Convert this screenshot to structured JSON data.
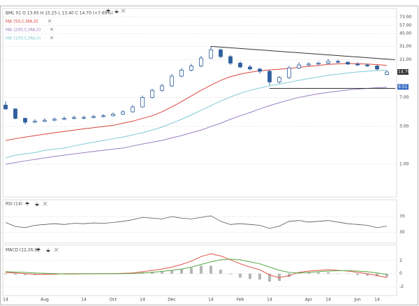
{
  "chart_data": [
    {
      "type": "candlestick",
      "title": "BML 01 O 13.65 H 15.25 L 13.40 C 14.70 (+7.69%)",
      "categories": [
        "14",
        null,
        null,
        null,
        "Aug",
        null,
        null,
        null,
        "14",
        null,
        null,
        "Oct",
        null,
        null,
        "14",
        null,
        null,
        "Dec",
        null,
        null,
        null,
        "14",
        null,
        null,
        "Feb",
        null,
        null,
        "14",
        null,
        null,
        null,
        "Apr",
        null,
        "14",
        null,
        null,
        "Jun",
        null,
        "14",
        null
      ],
      "candle_color": "#2f5f9e",
      "candles": [
        [
          5.6,
          6.2,
          4.9,
          5.0
        ],
        [
          5.0,
          5.1,
          3.7,
          3.8
        ],
        [
          3.8,
          3.9,
          3.2,
          3.4
        ],
        [
          3.4,
          3.7,
          3.3,
          3.5
        ],
        [
          3.5,
          3.8,
          3.4,
          3.6
        ],
        [
          3.6,
          3.9,
          3.5,
          3.7
        ],
        [
          3.7,
          4.0,
          3.6,
          3.8
        ],
        [
          3.8,
          4.1,
          3.7,
          3.9
        ],
        [
          3.9,
          4.1,
          3.7,
          3.9
        ],
        [
          3.9,
          4.2,
          3.8,
          4.0
        ],
        [
          4.0,
          4.3,
          3.9,
          4.1
        ],
        [
          4.1,
          4.5,
          4.0,
          4.3
        ],
        [
          4.3,
          4.8,
          4.2,
          4.6
        ],
        [
          4.6,
          5.6,
          4.5,
          5.3
        ],
        [
          5.3,
          7.4,
          5.2,
          7.0
        ],
        [
          7.0,
          9.0,
          6.8,
          8.6
        ],
        [
          8.6,
          10.4,
          8.3,
          9.8
        ],
        [
          9.8,
          13.8,
          9.5,
          13.0
        ],
        [
          13.0,
          16.5,
          12.6,
          15.5
        ],
        [
          15.5,
          18.6,
          15.0,
          17.5
        ],
        [
          17.5,
          23.5,
          17.0,
          22.0
        ],
        [
          22.0,
          31.0,
          21.5,
          28.0
        ],
        [
          28.0,
          29.0,
          22.0,
          23.0
        ],
        [
          23.0,
          24.0,
          18.0,
          19.0
        ],
        [
          19.0,
          20.0,
          16.5,
          17.0
        ],
        [
          17.0,
          18.0,
          15.5,
          16.0
        ],
        [
          16.0,
          16.5,
          14.0,
          15.0
        ],
        [
          15.0,
          15.5,
          10.0,
          11.0
        ],
        [
          11.0,
          13.0,
          10.5,
          12.5
        ],
        [
          12.5,
          17.5,
          12.0,
          16.5
        ],
        [
          16.5,
          19.5,
          16.0,
          18.0
        ],
        [
          18.0,
          19.5,
          17.5,
          18.5
        ],
        [
          18.5,
          20.0,
          18.0,
          19.0
        ],
        [
          19.0,
          21.5,
          18.5,
          20.0
        ],
        [
          20.0,
          21.0,
          19.0,
          19.5
        ],
        [
          19.5,
          20.0,
          18.0,
          18.5
        ],
        [
          18.5,
          19.5,
          17.5,
          18.0
        ],
        [
          18.0,
          18.8,
          17.0,
          17.5
        ],
        [
          17.5,
          18.0,
          15.5,
          16.0
        ],
        [
          13.65,
          15.25,
          13.4,
          14.7
        ]
      ],
      "series": [
        {
          "name": "MA (50,C,MA,0)",
          "color": "#d9453d",
          "values": [
            2.0,
            2.1,
            2.2,
            2.3,
            2.4,
            2.5,
            2.6,
            2.7,
            2.8,
            2.9,
            3.0,
            3.1,
            3.3,
            3.5,
            3.8,
            4.1,
            4.6,
            5.3,
            6.2,
            7.3,
            8.6,
            10.0,
            11.5,
            12.8,
            13.8,
            14.6,
            15.2,
            15.6,
            15.9,
            16.3,
            16.8,
            17.3,
            17.8,
            18.3,
            18.6,
            18.8,
            18.7,
            18.5,
            18.2,
            17.8
          ]
        },
        {
          "name": "MA (200,C,MA,0)",
          "color": "#9a7fc0",
          "values": [
            1.0,
            1.05,
            1.1,
            1.15,
            1.2,
            1.25,
            1.3,
            1.35,
            1.4,
            1.45,
            1.5,
            1.55,
            1.6,
            1.7,
            1.8,
            1.9,
            2.0,
            2.15,
            2.3,
            2.5,
            2.7,
            3.0,
            3.3,
            3.7,
            4.1,
            4.5,
            5.0,
            5.5,
            6.0,
            6.5,
            7.0,
            7.4,
            7.8,
            8.1,
            8.4,
            8.7,
            8.9,
            9.1,
            9.3,
            9.4
          ]
        },
        {
          "name": "MA (100,C,MA,0)",
          "color": "#7fcad6",
          "values": [
            1.2,
            1.3,
            1.35,
            1.4,
            1.5,
            1.55,
            1.6,
            1.7,
            1.8,
            1.9,
            2.0,
            2.1,
            2.2,
            2.35,
            2.5,
            2.7,
            2.95,
            3.3,
            3.7,
            4.2,
            4.8,
            5.5,
            6.3,
            7.1,
            7.9,
            8.6,
            9.2,
            9.8,
            10.3,
            10.9,
            11.5,
            12.1,
            12.7,
            13.3,
            13.8,
            14.3,
            14.7,
            15.0,
            15.3,
            15.5
          ]
        }
      ],
      "trendlines": [
        {
          "x": [
            21,
            39
          ],
          "y": [
            31,
            21
          ]
        },
        {
          "x": [
            27,
            39
          ],
          "y": [
            9.1,
            9.1
          ]
        }
      ],
      "price_markers": [
        {
          "value": 14.7,
          "label": "14.70",
          "color": "#333333"
        },
        {
          "value": 9.51,
          "label": "9.51",
          "color": "#3b6fc4"
        }
      ],
      "log": true,
      "ylim": [
        0.4,
        90
      ],
      "yticks": [
        {
          "value": 73,
          "label": "73.00"
        },
        {
          "value": 57,
          "label": "57.00"
        },
        {
          "value": 45,
          "label": "45.00"
        },
        {
          "value": 31,
          "label": "31.00"
        },
        {
          "value": 21,
          "label": "21.00"
        },
        {
          "value": 7,
          "label": "7.00"
        },
        {
          "value": 3,
          "label": "3.00"
        },
        {
          "value": 1,
          "label": "1.00"
        }
      ]
    },
    {
      "type": "line",
      "title": "RSI (14)",
      "color": "#555555",
      "values": [
        55,
        45,
        42,
        48,
        50,
        52,
        50,
        53,
        52,
        54,
        53,
        55,
        58,
        62,
        68,
        66,
        64,
        70,
        66,
        64,
        68,
        72,
        58,
        50,
        52,
        50,
        48,
        40,
        46,
        58,
        60,
        56,
        58,
        60,
        56,
        52,
        50,
        48,
        42,
        46
      ],
      "ylim": [
        10,
        100
      ],
      "yticks": [
        70,
        30
      ]
    },
    {
      "type": "line",
      "title": "MACD (12,26,9)",
      "series": [
        {
          "color": "#e0544a",
          "values": [
            0.2,
            0.1,
            0,
            -0.1,
            -0.1,
            -0.1,
            0,
            0,
            0,
            0,
            0,
            0,
            0.05,
            0.1,
            0.3,
            0.5,
            0.7,
            1.0,
            1.4,
            1.9,
            2.6,
            3.0,
            2.7,
            2.1,
            1.5,
            1.0,
            0.6,
            -0.2,
            -0.6,
            -0.3,
            0.2,
            0.4,
            0.5,
            0.6,
            0.5,
            0.4,
            0.2,
            0,
            -0.3,
            -0.6
          ]
        },
        {
          "color": "#5aa845",
          "values": [
            0.3,
            0.25,
            0.2,
            0.1,
            0.05,
            0,
            -0.05,
            -0.05,
            -0.03,
            -0.02,
            0,
            0,
            0,
            0.02,
            0.1,
            0.2,
            0.35,
            0.5,
            0.7,
            1.0,
            1.4,
            1.8,
            2.1,
            2.2,
            2.1,
            1.8,
            1.5,
            1.0,
            0.5,
            0.2,
            0.1,
            0.2,
            0.3,
            0.4,
            0.45,
            0.45,
            0.4,
            0.3,
            0.1,
            -0.1
          ]
        }
      ],
      "histogram": {
        "color": "#b5b5b5",
        "values": [
          -0.1,
          -0.15,
          -0.2,
          -0.2,
          -0.15,
          -0.1,
          0.05,
          0.05,
          0.03,
          0.02,
          0,
          0,
          0.05,
          0.08,
          0.2,
          0.3,
          0.35,
          0.5,
          0.7,
          0.9,
          1.2,
          1.2,
          0.6,
          -0.1,
          -0.6,
          -0.8,
          -0.9,
          -1.2,
          -1.1,
          -0.5,
          0.1,
          0.2,
          0.2,
          0.2,
          0.05,
          -0.05,
          -0.2,
          -0.3,
          -0.4,
          -0.5
        ]
      },
      "ylim": [
        -3,
        4
      ],
      "yticks": [
        2,
        0,
        -2
      ]
    }
  ]
}
